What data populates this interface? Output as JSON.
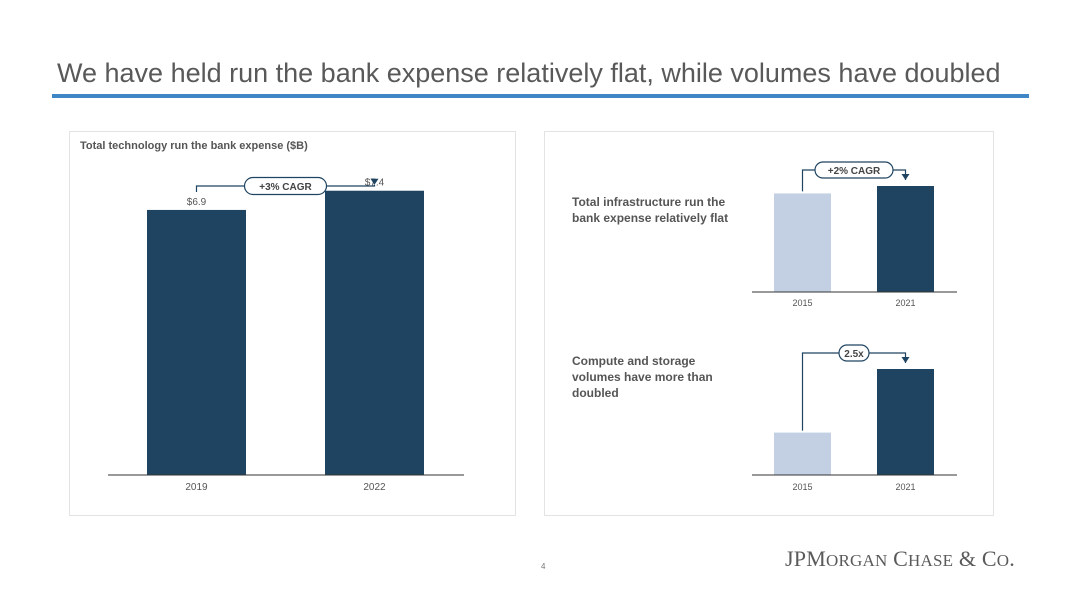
{
  "slide": {
    "title": "We have held run the bank expense relatively flat, while volumes have doubled",
    "page_number": "4",
    "logo_text": "JPMorgan Chase & Co.",
    "accent_color": "#3f86c6"
  },
  "chart_data": [
    {
      "type": "bar",
      "title": "Total technology run the bank expense ($B)",
      "categories": [
        "2019",
        "2022"
      ],
      "values": [
        6.9,
        7.4
      ],
      "data_labels": [
        "$6.9",
        "$7.4"
      ],
      "annotation": "+3% CAGR",
      "colors": [
        "#1f4461",
        "#1f4461"
      ],
      "ylim": [
        0,
        8.2
      ],
      "grid": false,
      "xlabel": "",
      "ylabel": ""
    },
    {
      "type": "bar",
      "title": "",
      "description": "Total infrastructure run the bank expense relatively flat",
      "categories": [
        "2015",
        "2021"
      ],
      "values": [
        0.93,
        1.0
      ],
      "annotation": "+2% CAGR",
      "colors": [
        "#c3d0e4",
        "#1f4461"
      ],
      "ylim": [
        0,
        1.0
      ],
      "grid": false,
      "xlabel": "",
      "ylabel": ""
    },
    {
      "type": "bar",
      "title": "",
      "description": "Compute and storage volumes have more than doubled",
      "categories": [
        "2015",
        "2021"
      ],
      "values": [
        1.0,
        2.5
      ],
      "annotation": "2.5x",
      "colors": [
        "#c3d0e4",
        "#1f4461"
      ],
      "ylim": [
        0,
        2.5
      ],
      "grid": false,
      "xlabel": "",
      "ylabel": ""
    }
  ]
}
